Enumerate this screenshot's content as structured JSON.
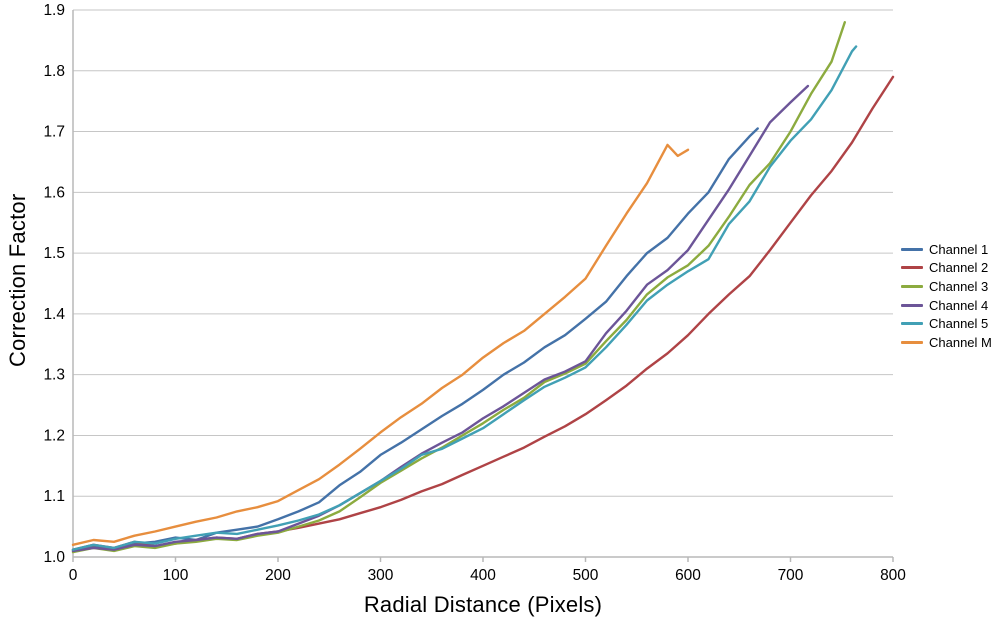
{
  "chart_data": {
    "type": "line",
    "title": "",
    "xlabel": "Radial Distance (Pixels)",
    "ylabel": "Correction Factor",
    "xlim": [
      0,
      800
    ],
    "ylim": [
      1.0,
      1.9
    ],
    "x_ticks": [
      0,
      100,
      200,
      300,
      400,
      500,
      600,
      700,
      800
    ],
    "y_ticks": [
      1.0,
      1.1,
      1.2,
      1.3,
      1.4,
      1.5,
      1.6,
      1.7,
      1.8,
      1.9
    ],
    "grid": "horizontal-only",
    "legend_position": "right-middle",
    "axis_color": "#b8b8b8",
    "gridline_color": "#c6c6c6",
    "tick_label_color": "#000000",
    "series": [
      {
        "name": "Channel 1",
        "color": "#4472A8",
        "x": [
          0,
          20,
          40,
          60,
          80,
          100,
          120,
          140,
          160,
          180,
          200,
          220,
          240,
          260,
          280,
          300,
          320,
          340,
          360,
          380,
          400,
          420,
          440,
          460,
          480,
          500,
          520,
          540,
          560,
          580,
          600,
          620,
          640,
          660,
          668
        ],
        "y": [
          1.01,
          1.018,
          1.012,
          1.022,
          1.025,
          1.032,
          1.028,
          1.04,
          1.045,
          1.05,
          1.062,
          1.075,
          1.09,
          1.118,
          1.14,
          1.168,
          1.188,
          1.21,
          1.232,
          1.252,
          1.275,
          1.3,
          1.32,
          1.345,
          1.365,
          1.392,
          1.42,
          1.462,
          1.5,
          1.525,
          1.565,
          1.6,
          1.655,
          1.692,
          1.705
        ]
      },
      {
        "name": "Channel 2",
        "color": "#AF4346",
        "x": [
          0,
          20,
          40,
          60,
          80,
          100,
          120,
          140,
          160,
          180,
          200,
          220,
          240,
          260,
          280,
          300,
          320,
          340,
          360,
          380,
          400,
          420,
          440,
          460,
          480,
          500,
          520,
          540,
          560,
          580,
          600,
          620,
          640,
          660,
          680,
          700,
          720,
          740,
          760,
          780,
          800
        ],
        "y": [
          1.012,
          1.02,
          1.015,
          1.025,
          1.018,
          1.022,
          1.028,
          1.032,
          1.03,
          1.038,
          1.042,
          1.048,
          1.055,
          1.062,
          1.072,
          1.082,
          1.094,
          1.108,
          1.12,
          1.135,
          1.15,
          1.165,
          1.18,
          1.198,
          1.215,
          1.235,
          1.258,
          1.282,
          1.31,
          1.335,
          1.365,
          1.4,
          1.432,
          1.462,
          1.505,
          1.55,
          1.595,
          1.635,
          1.682,
          1.738,
          1.79
        ]
      },
      {
        "name": "Channel 3",
        "color": "#8CAB3F",
        "x": [
          0,
          20,
          40,
          60,
          80,
          100,
          120,
          140,
          160,
          180,
          200,
          220,
          240,
          260,
          280,
          300,
          320,
          340,
          360,
          380,
          400,
          420,
          440,
          460,
          480,
          500,
          520,
          540,
          560,
          580,
          600,
          620,
          640,
          660,
          680,
          700,
          720,
          740,
          753
        ],
        "y": [
          1.008,
          1.015,
          1.01,
          1.018,
          1.015,
          1.022,
          1.025,
          1.03,
          1.028,
          1.035,
          1.04,
          1.05,
          1.06,
          1.075,
          1.098,
          1.122,
          1.142,
          1.162,
          1.18,
          1.2,
          1.22,
          1.242,
          1.262,
          1.288,
          1.302,
          1.318,
          1.355,
          1.39,
          1.432,
          1.46,
          1.48,
          1.512,
          1.56,
          1.612,
          1.648,
          1.7,
          1.762,
          1.815,
          1.88
        ]
      },
      {
        "name": "Channel 4",
        "color": "#6C5598",
        "x": [
          0,
          20,
          40,
          60,
          80,
          100,
          120,
          140,
          160,
          180,
          200,
          220,
          240,
          260,
          280,
          300,
          320,
          340,
          360,
          380,
          400,
          420,
          440,
          460,
          480,
          500,
          520,
          540,
          560,
          580,
          600,
          620,
          640,
          660,
          680,
          700,
          717
        ],
        "y": [
          1.01,
          1.015,
          1.012,
          1.02,
          1.018,
          1.025,
          1.028,
          1.032,
          1.03,
          1.038,
          1.042,
          1.055,
          1.068,
          1.085,
          1.105,
          1.125,
          1.148,
          1.17,
          1.188,
          1.205,
          1.228,
          1.248,
          1.27,
          1.292,
          1.305,
          1.322,
          1.368,
          1.405,
          1.448,
          1.472,
          1.505,
          1.555,
          1.605,
          1.66,
          1.715,
          1.748,
          1.775
        ]
      },
      {
        "name": "Channel 5",
        "color": "#41A0B5",
        "x": [
          0,
          20,
          40,
          60,
          80,
          100,
          120,
          140,
          160,
          180,
          200,
          220,
          240,
          260,
          280,
          300,
          320,
          340,
          360,
          380,
          400,
          420,
          440,
          460,
          480,
          500,
          520,
          540,
          560,
          580,
          600,
          620,
          640,
          660,
          680,
          700,
          720,
          740,
          760,
          764
        ],
        "y": [
          1.012,
          1.02,
          1.015,
          1.025,
          1.022,
          1.03,
          1.035,
          1.04,
          1.038,
          1.045,
          1.052,
          1.06,
          1.07,
          1.085,
          1.105,
          1.125,
          1.145,
          1.168,
          1.178,
          1.195,
          1.212,
          1.235,
          1.258,
          1.28,
          1.295,
          1.312,
          1.345,
          1.382,
          1.422,
          1.448,
          1.47,
          1.49,
          1.548,
          1.585,
          1.642,
          1.685,
          1.72,
          1.768,
          1.832,
          1.84
        ]
      },
      {
        "name": "Channel M",
        "color": "#E78E3E",
        "x": [
          0,
          20,
          40,
          60,
          80,
          100,
          120,
          140,
          160,
          180,
          200,
          220,
          240,
          260,
          280,
          300,
          320,
          340,
          360,
          380,
          400,
          420,
          440,
          460,
          480,
          500,
          520,
          540,
          560,
          580,
          590,
          600
        ],
        "y": [
          1.02,
          1.028,
          1.025,
          1.035,
          1.042,
          1.05,
          1.058,
          1.065,
          1.075,
          1.082,
          1.092,
          1.11,
          1.128,
          1.152,
          1.178,
          1.205,
          1.23,
          1.252,
          1.278,
          1.3,
          1.328,
          1.352,
          1.372,
          1.4,
          1.428,
          1.458,
          1.512,
          1.565,
          1.615,
          1.678,
          1.66,
          1.67
        ]
      }
    ]
  }
}
